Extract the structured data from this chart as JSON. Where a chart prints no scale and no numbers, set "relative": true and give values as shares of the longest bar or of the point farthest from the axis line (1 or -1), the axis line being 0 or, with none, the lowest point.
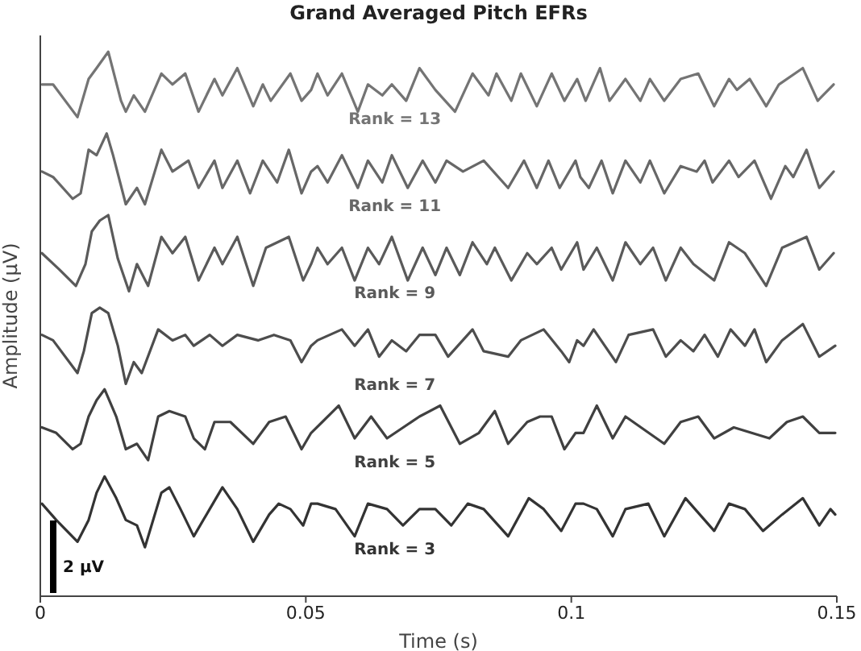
{
  "chart_data": {
    "type": "line",
    "title": "Grand Averaged Pitch EFRs",
    "xlabel": "Time (s)",
    "ylabel": "Amplitude (μV)",
    "relative": true,
    "xlim": [
      0,
      0.15
    ],
    "xticks": [
      0,
      0.05,
      0.1,
      0.15
    ],
    "legend": false,
    "annotations": [
      "2 μV"
    ],
    "series": [
      {
        "name": "Rank = 13",
        "color": "#747474",
        "x": [
          0.0003,
          0.0024,
          0.007,
          0.0091,
          0.0106,
          0.0128,
          0.0152,
          0.0161,
          0.0176,
          0.0197,
          0.0228,
          0.0249,
          0.0273,
          0.0298,
          0.0328,
          0.0343,
          0.0371,
          0.0401,
          0.0419,
          0.0434,
          0.0471,
          0.0492,
          0.051,
          0.0522,
          0.0541,
          0.0568,
          0.0598,
          0.0617,
          0.0644,
          0.0662,
          0.0689,
          0.0714,
          0.0744,
          0.0781,
          0.0814,
          0.0844,
          0.0859,
          0.0887,
          0.0905,
          0.0935,
          0.0963,
          0.0987,
          0.1011,
          0.1027,
          0.1054,
          0.1072,
          0.1102,
          0.113,
          0.1148,
          0.1175,
          0.1206,
          0.1239,
          0.1269,
          0.1297,
          0.1312,
          0.1336,
          0.1367,
          0.1391,
          0.1436,
          0.1464,
          0.1494
        ],
        "values": [
          0.94,
          0.94,
          0.88,
          0.95,
          0.97,
          1,
          0.91,
          0.89,
          0.92,
          0.89,
          0.96,
          0.94,
          0.96,
          0.89,
          0.95,
          0.92,
          0.97,
          0.9,
          0.94,
          0.91,
          0.96,
          0.91,
          0.93,
          0.96,
          0.92,
          0.96,
          0.89,
          0.94,
          0.92,
          0.94,
          0.91,
          0.97,
          0.93,
          0.89,
          0.96,
          0.92,
          0.96,
          0.91,
          0.96,
          0.9,
          0.96,
          0.91,
          0.95,
          0.91,
          0.97,
          0.91,
          0.95,
          0.91,
          0.95,
          0.91,
          0.95,
          0.96,
          0.9,
          0.95,
          0.93,
          0.95,
          0.9,
          0.94,
          0.97,
          0.91,
          0.94
        ]
      },
      {
        "name": "Rank = 11",
        "color": "#676767",
        "x": [
          0.0003,
          0.0024,
          0.0061,
          0.0076,
          0.0091,
          0.0106,
          0.0125,
          0.0137,
          0.0161,
          0.0182,
          0.0197,
          0.0228,
          0.0249,
          0.0279,
          0.0298,
          0.0328,
          0.0343,
          0.0371,
          0.0395,
          0.0419,
          0.0446,
          0.0468,
          0.0492,
          0.051,
          0.0522,
          0.0541,
          0.0568,
          0.0598,
          0.0617,
          0.0644,
          0.0662,
          0.0692,
          0.072,
          0.0744,
          0.0765,
          0.0796,
          0.0835,
          0.0881,
          0.0911,
          0.0935,
          0.0957,
          0.0978,
          0.1008,
          0.1017,
          0.1033,
          0.1057,
          0.1078,
          0.1102,
          0.113,
          0.1148,
          0.1175,
          0.1206,
          0.1236,
          0.1251,
          0.1266,
          0.1297,
          0.1315,
          0.1345,
          0.1376,
          0.1403,
          0.1418,
          0.1443,
          0.1467,
          0.1494
        ],
        "values": [
          0.78,
          0.77,
          0.73,
          0.74,
          0.82,
          0.81,
          0.85,
          0.81,
          0.72,
          0.75,
          0.72,
          0.82,
          0.78,
          0.8,
          0.75,
          0.8,
          0.75,
          0.8,
          0.74,
          0.8,
          0.76,
          0.82,
          0.74,
          0.78,
          0.79,
          0.76,
          0.81,
          0.75,
          0.8,
          0.76,
          0.81,
          0.75,
          0.8,
          0.76,
          0.8,
          0.78,
          0.8,
          0.75,
          0.8,
          0.75,
          0.8,
          0.75,
          0.8,
          0.77,
          0.75,
          0.8,
          0.74,
          0.8,
          0.76,
          0.8,
          0.74,
          0.79,
          0.78,
          0.8,
          0.76,
          0.8,
          0.77,
          0.8,
          0.73,
          0.79,
          0.77,
          0.82,
          0.75,
          0.78
        ]
      },
      {
        "name": "Rank = 9",
        "color": "#5a5a5a",
        "x": [
          0.0003,
          0.0036,
          0.0067,
          0.0085,
          0.0097,
          0.0112,
          0.0128,
          0.0146,
          0.0167,
          0.0182,
          0.0203,
          0.0228,
          0.0249,
          0.0273,
          0.0298,
          0.0328,
          0.0343,
          0.0371,
          0.0401,
          0.0425,
          0.0468,
          0.0495,
          0.051,
          0.0522,
          0.0541,
          0.0568,
          0.0592,
          0.0617,
          0.0638,
          0.0662,
          0.0692,
          0.072,
          0.0744,
          0.0765,
          0.079,
          0.0814,
          0.0841,
          0.0856,
          0.0887,
          0.0917,
          0.0935,
          0.0963,
          0.0981,
          0.1011,
          0.1023,
          0.1048,
          0.1078,
          0.1102,
          0.113,
          0.1154,
          0.1178,
          0.1206,
          0.123,
          0.1269,
          0.1297,
          0.1327,
          0.1367,
          0.1397,
          0.1443,
          0.1467,
          0.1494
        ],
        "values": [
          0.63,
          0.6,
          0.57,
          0.61,
          0.67,
          0.69,
          0.7,
          0.62,
          0.56,
          0.61,
          0.57,
          0.66,
          0.63,
          0.66,
          0.58,
          0.64,
          0.61,
          0.66,
          0.57,
          0.64,
          0.66,
          0.58,
          0.61,
          0.64,
          0.61,
          0.64,
          0.58,
          0.64,
          0.61,
          0.66,
          0.58,
          0.64,
          0.59,
          0.64,
          0.59,
          0.65,
          0.61,
          0.64,
          0.58,
          0.63,
          0.61,
          0.64,
          0.6,
          0.65,
          0.6,
          0.64,
          0.58,
          0.65,
          0.61,
          0.64,
          0.58,
          0.64,
          0.61,
          0.58,
          0.65,
          0.63,
          0.57,
          0.64,
          0.66,
          0.6,
          0.63
        ]
      },
      {
        "name": "Rank = 7",
        "color": "#4d4d4d",
        "x": [
          0.0003,
          0.0024,
          0.007,
          0.0082,
          0.0097,
          0.0112,
          0.0128,
          0.0146,
          0.0161,
          0.0176,
          0.0191,
          0.0222,
          0.0249,
          0.0273,
          0.0289,
          0.0319,
          0.0343,
          0.0371,
          0.041,
          0.044,
          0.0471,
          0.0492,
          0.051,
          0.0522,
          0.0568,
          0.0592,
          0.0617,
          0.0638,
          0.0662,
          0.0689,
          0.0714,
          0.0744,
          0.0768,
          0.0814,
          0.0835,
          0.0881,
          0.0905,
          0.0948,
          0.0981,
          0.0996,
          0.1011,
          0.1023,
          0.1042,
          0.1084,
          0.1108,
          0.1154,
          0.1178,
          0.1206,
          0.123,
          0.1251,
          0.1276,
          0.13,
          0.1327,
          0.1345,
          0.1367,
          0.1397,
          0.1436,
          0.1467,
          0.1497
        ],
        "values": [
          0.48,
          0.47,
          0.41,
          0.45,
          0.52,
          0.53,
          0.52,
          0.46,
          0.39,
          0.43,
          0.41,
          0.49,
          0.47,
          0.48,
          0.46,
          0.48,
          0.46,
          0.48,
          0.47,
          0.48,
          0.47,
          0.43,
          0.46,
          0.47,
          0.49,
          0.46,
          0.49,
          0.44,
          0.47,
          0.45,
          0.48,
          0.48,
          0.44,
          0.49,
          0.45,
          0.44,
          0.47,
          0.49,
          0.45,
          0.43,
          0.47,
          0.46,
          0.49,
          0.43,
          0.48,
          0.49,
          0.44,
          0.47,
          0.45,
          0.48,
          0.44,
          0.49,
          0.46,
          0.49,
          0.43,
          0.47,
          0.5,
          0.44,
          0.46
        ]
      },
      {
        "name": "Rank = 5",
        "color": "#404040",
        "x": [
          0.0003,
          0.003,
          0.0061,
          0.0076,
          0.0091,
          0.0106,
          0.0121,
          0.0143,
          0.0161,
          0.0182,
          0.0203,
          0.0222,
          0.0243,
          0.0273,
          0.0289,
          0.031,
          0.0328,
          0.0358,
          0.0401,
          0.0431,
          0.0462,
          0.0492,
          0.051,
          0.0531,
          0.0562,
          0.0592,
          0.0623,
          0.0653,
          0.0714,
          0.0753,
          0.079,
          0.0826,
          0.0856,
          0.0881,
          0.0917,
          0.0941,
          0.0963,
          0.0987,
          0.1008,
          0.1023,
          0.1048,
          0.1078,
          0.1102,
          0.1175,
          0.1206,
          0.1239,
          0.1269,
          0.1306,
          0.1373,
          0.1406,
          0.1436,
          0.1467,
          0.1497
        ],
        "values": [
          0.31,
          0.3,
          0.27,
          0.28,
          0.33,
          0.36,
          0.38,
          0.33,
          0.27,
          0.28,
          0.25,
          0.33,
          0.34,
          0.33,
          0.29,
          0.27,
          0.32,
          0.32,
          0.28,
          0.32,
          0.33,
          0.27,
          0.3,
          0.32,
          0.35,
          0.29,
          0.33,
          0.29,
          0.33,
          0.35,
          0.28,
          0.3,
          0.34,
          0.28,
          0.32,
          0.33,
          0.33,
          0.27,
          0.3,
          0.3,
          0.35,
          0.29,
          0.33,
          0.28,
          0.32,
          0.33,
          0.29,
          0.31,
          0.29,
          0.32,
          0.33,
          0.3,
          0.3
        ]
      },
      {
        "name": "Rank = 3",
        "color": "#333333",
        "x": [
          0.0003,
          0.003,
          0.007,
          0.0091,
          0.0106,
          0.0121,
          0.0143,
          0.0161,
          0.0182,
          0.0197,
          0.0228,
          0.0243,
          0.0264,
          0.0289,
          0.0319,
          0.0343,
          0.0371,
          0.0401,
          0.0431,
          0.0449,
          0.0471,
          0.0495,
          0.051,
          0.0522,
          0.0556,
          0.0592,
          0.0617,
          0.0653,
          0.0683,
          0.0714,
          0.0744,
          0.0774,
          0.0805,
          0.0835,
          0.0881,
          0.092,
          0.0948,
          0.0981,
          0.1008,
          0.1023,
          0.1048,
          0.1078,
          0.1102,
          0.1145,
          0.1175,
          0.1215,
          0.1269,
          0.1297,
          0.1327,
          0.1361,
          0.1397,
          0.1436,
          0.1467,
          0.1488,
          0.1497
        ],
        "values": [
          0.17,
          0.14,
          0.1,
          0.14,
          0.19,
          0.22,
          0.18,
          0.14,
          0.13,
          0.09,
          0.19,
          0.2,
          0.16,
          0.11,
          0.16,
          0.2,
          0.16,
          0.1,
          0.15,
          0.17,
          0.16,
          0.13,
          0.17,
          0.17,
          0.16,
          0.11,
          0.17,
          0.16,
          0.13,
          0.16,
          0.16,
          0.13,
          0.17,
          0.16,
          0.11,
          0.18,
          0.16,
          0.12,
          0.17,
          0.17,
          0.16,
          0.11,
          0.16,
          0.17,
          0.11,
          0.18,
          0.12,
          0.17,
          0.16,
          0.12,
          0.15,
          0.18,
          0.13,
          0.16,
          0.15
        ]
      }
    ]
  }
}
